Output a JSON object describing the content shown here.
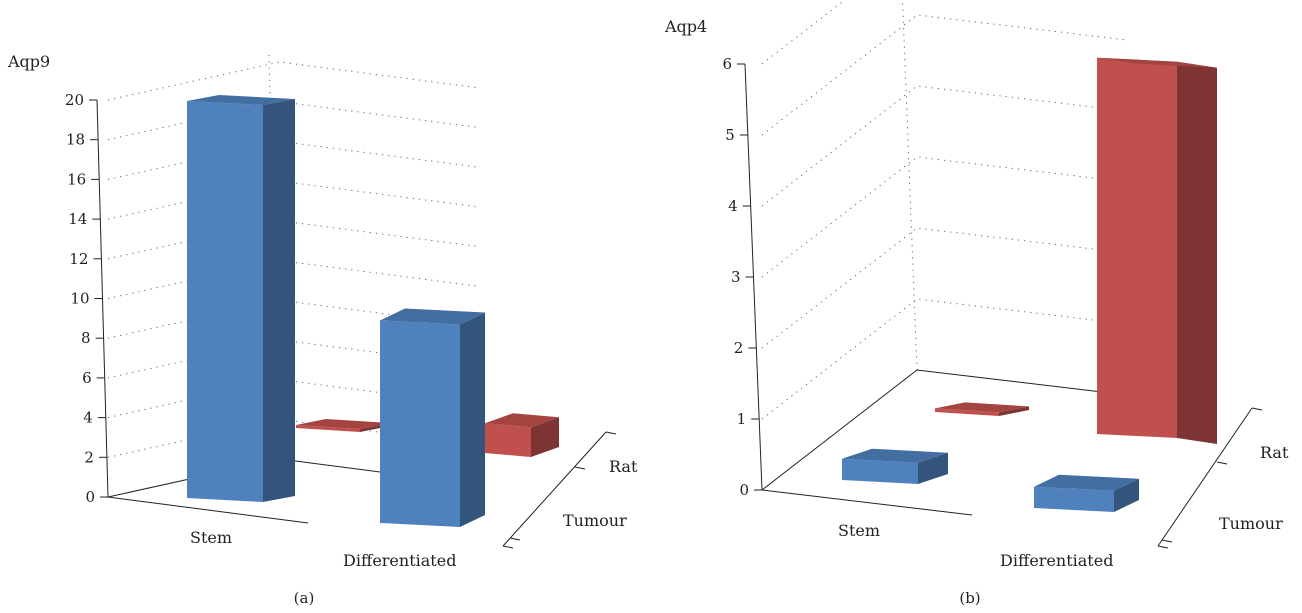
{
  "chart_data": [
    {
      "type": "bar",
      "panel_label": "(a)",
      "ylabel": "Aqp9",
      "ylim": [
        0,
        20
      ],
      "yticks": [
        "0",
        "2",
        "4",
        "6",
        "8",
        "10",
        "12",
        "14",
        "16",
        "18",
        "20"
      ],
      "categories": [
        "Stem",
        "Differentiated"
      ],
      "depth_categories": [
        "Tumour",
        "Rat"
      ],
      "series": [
        {
          "name": "Tumour",
          "values": [
            20,
            10.2
          ],
          "color": "#4f81bd"
        },
        {
          "name": "Rat",
          "values": [
            0.15,
            1.5
          ],
          "color": "#c0504d"
        }
      ],
      "grid": true
    },
    {
      "type": "bar",
      "panel_label": "(b)",
      "ylabel": "Aqp4",
      "ylim": [
        0,
        6
      ],
      "yticks": [
        "0",
        "1",
        "2",
        "3",
        "4",
        "5",
        "6"
      ],
      "categories": [
        "Stem",
        "Differentiated"
      ],
      "depth_categories": [
        "Tumour",
        "Rat"
      ],
      "series": [
        {
          "name": "Tumour",
          "values": [
            0.3,
            0.3
          ],
          "color": "#4f81bd"
        },
        {
          "name": "Rat",
          "values": [
            0.05,
            5.3
          ],
          "color": "#c0504d"
        }
      ],
      "grid": true
    }
  ]
}
